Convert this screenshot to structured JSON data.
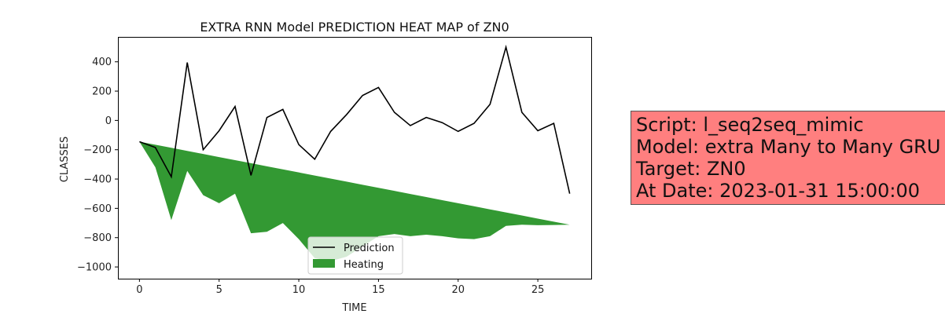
{
  "chart_data": {
    "type": "line",
    "title": "EXTRA RNN Model PREDICTION HEAT MAP of ZN0",
    "xlabel": "TIME",
    "ylabel": "CLASSES",
    "xlim": [
      -1.35,
      28.35
    ],
    "ylim": [
      -1080,
      570
    ],
    "xticks": [
      0,
      5,
      10,
      15,
      20,
      25
    ],
    "yticks": [
      -1000,
      -800,
      -600,
      -400,
      -200,
      0,
      200,
      400
    ],
    "x": [
      0,
      1,
      2,
      3,
      4,
      5,
      6,
      7,
      8,
      9,
      10,
      11,
      12,
      13,
      14,
      15,
      16,
      17,
      18,
      19,
      20,
      21,
      22,
      23,
      24,
      25,
      26,
      27
    ],
    "series": [
      {
        "name": "Prediction",
        "type": "line",
        "color": "#000000",
        "values": [
          -145,
          -185,
          -385,
          395,
          -200,
          -70,
          95,
          -375,
          20,
          75,
          -165,
          -265,
          -75,
          40,
          170,
          225,
          55,
          -35,
          20,
          -15,
          -75,
          -20,
          110,
          500,
          55,
          -70,
          -20,
          -500
        ]
      },
      {
        "name": "Heating",
        "type": "area",
        "color": "#339933",
        "upper": [
          -145,
          -166,
          -187,
          -208,
          -229,
          -250,
          -271,
          -292,
          -313,
          -334,
          -355,
          -376,
          -397,
          -418,
          -439,
          -460,
          -481,
          -502,
          -523,
          -544,
          -565,
          -586,
          -607,
          -628,
          -649,
          -670,
          -691,
          -712
        ],
        "lower": [
          -145,
          -320,
          -680,
          -345,
          -510,
          -565,
          -500,
          -770,
          -760,
          -700,
          -810,
          -940,
          -960,
          -930,
          -860,
          -790,
          -775,
          -790,
          -780,
          -790,
          -805,
          -810,
          -790,
          -720,
          -712,
          -715,
          -714,
          -712
        ]
      }
    ],
    "legend": {
      "position": "lower-center",
      "entries": [
        "Prediction",
        "Heating"
      ]
    },
    "grid": false
  },
  "info_box": {
    "script": "Script: l_seq2seq_mimic",
    "model": "Model: extra Many to Many GRU",
    "target": "Target: ZN0",
    "date": "At Date: 2023-01-31 15:00:00",
    "background": "#ff7f7f"
  }
}
